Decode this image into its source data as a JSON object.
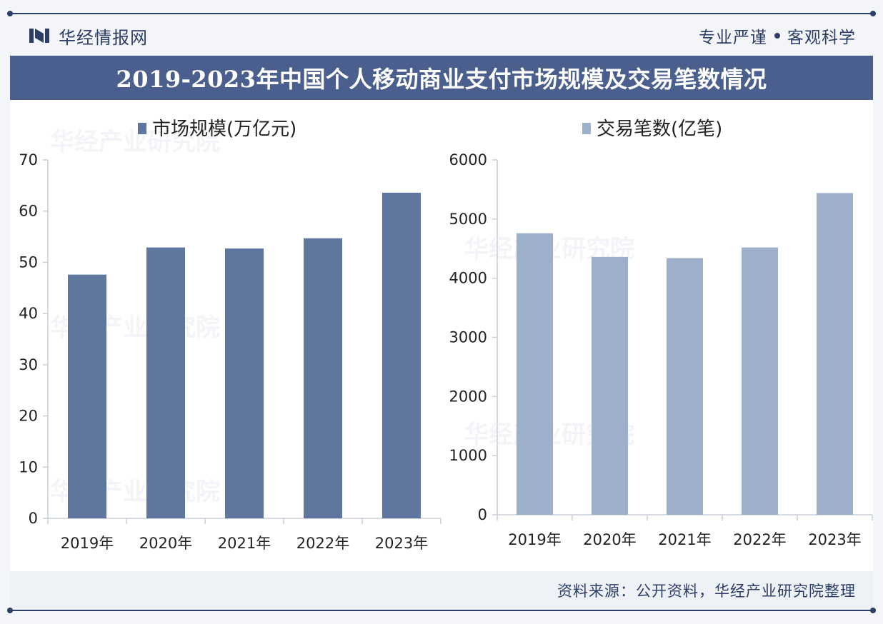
{
  "header": {
    "brand_name": "华经情报网",
    "slogan_left": "专业严谨",
    "slogan_right": "客观科学"
  },
  "title": "2019-2023年中国个人移动商业支付市场规模及交易笔数情况",
  "source": "资料来源：公开资料，华经产业研究院整理",
  "watermark_text": "华经产业研究院",
  "colors": {
    "accent": "#2c3e66",
    "title_bar": "#4a5f8e",
    "series_market": "#5f779f",
    "series_transactions": "#9eafc9"
  },
  "chart_data": [
    {
      "type": "bar",
      "categories": [
        "2019年",
        "2020年",
        "2021年",
        "2022年",
        "2023年"
      ],
      "series": [
        {
          "name": "市场规模(万亿元)",
          "values": [
            47.6,
            52.9,
            52.7,
            54.7,
            63.6
          ]
        }
      ],
      "ylim": [
        0,
        70
      ],
      "yticks": [
        0,
        10,
        20,
        30,
        40,
        50,
        60,
        70
      ],
      "legend": "top"
    },
    {
      "type": "bar",
      "categories": [
        "2019年",
        "2020年",
        "2021年",
        "2022年",
        "2023年"
      ],
      "series": [
        {
          "name": "交易笔数(亿笔)",
          "values": [
            4760,
            4360,
            4340,
            4520,
            5440
          ]
        }
      ],
      "ylim": [
        0,
        6000
      ],
      "yticks": [
        0,
        1000,
        2000,
        3000,
        4000,
        5000,
        6000
      ],
      "legend": "top"
    }
  ]
}
